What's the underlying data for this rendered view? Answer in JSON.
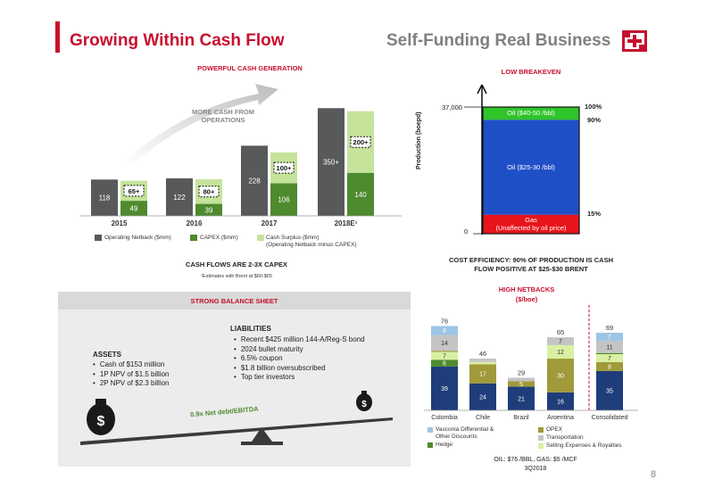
{
  "header": {
    "left_title": "Growing Within Cash Flow",
    "right_title": "Self-Funding Real Business"
  },
  "cash_generation": {
    "section_title": "POWERFUL CASH GENERATION",
    "arrow_annotation_line1": "MORE CASH FROM",
    "arrow_annotation_line2": "OPERATIONS",
    "footer_title": "CASH FLOWS ARE 2-3X CAPEX",
    "footnote": "¹Estimates with Brent at $60-$65",
    "legend": {
      "netback": "Operating Netback ($mm)",
      "capex": "CAPEX ($mm)",
      "surplus_line1": "Cash Surplus ($mm)",
      "surplus_line2": "(Operating Netback minus CAPEX)"
    }
  },
  "chart_data": [
    {
      "type": "bar",
      "title": "POWERFUL CASH GENERATION",
      "categories": [
        "2015",
        "2016",
        "2017",
        "2018E¹"
      ],
      "series": [
        {
          "name": "Operating Netback ($mm)",
          "values": [
            118,
            122,
            228,
            350
          ],
          "labels": [
            "118",
            "122",
            "228",
            "350+"
          ]
        },
        {
          "name": "CAPEX ($mm)",
          "values": [
            49,
            39,
            106,
            140
          ],
          "labels": [
            "49",
            "39",
            "106",
            "140"
          ]
        },
        {
          "name": "Cash Surplus ($mm)",
          "values": [
            65,
            80,
            100,
            200
          ],
          "labels": [
            "65+",
            "80+",
            "100+",
            "200+"
          ]
        }
      ]
    },
    {
      "type": "bar",
      "title": "LOW BREAKEVEN",
      "ylabel": "Production (boepd)",
      "ylim": [
        0,
        37000
      ],
      "y_ticks": [
        "37,000",
        "0"
      ],
      "segments": [
        {
          "label": "Gas",
          "sublabel": "(Unaffected by oil price)",
          "from_pct": 0,
          "to_pct": 15,
          "color": "#e8141b"
        },
        {
          "label": "Oil ($25-30 /bbl)",
          "from_pct": 15,
          "to_pct": 90,
          "color": "#1f4fc6"
        },
        {
          "label": "Oil ($40-50 /bbl)",
          "from_pct": 90,
          "to_pct": 100,
          "color": "#2fc42a"
        }
      ],
      "pct_labels": [
        "100%",
        "90%",
        "15%"
      ]
    },
    {
      "type": "bar",
      "title": "HIGH NETBACKS",
      "ylabel": "($/boe)",
      "categories": [
        "Colombia",
        "Chile",
        "Brazil",
        "Argentina",
        "Consolidated"
      ],
      "totals": [
        76,
        46,
        29,
        65,
        69
      ],
      "series": [
        {
          "name": "Vasconia Differential & Other Discounts",
          "color": "#9dc3e6",
          "values": [
            8,
            0,
            0,
            0,
            7
          ]
        },
        {
          "name": "OPEX",
          "color": "#a09a3a",
          "values": [
            0,
            17,
            3,
            30,
            0
          ]
        },
        {
          "name": "Hedge",
          "color": "#4e8a2e",
          "values": [
            6,
            2,
            0,
            0,
            8
          ]
        },
        {
          "name": "Transportation",
          "color": "#c4c4c4",
          "values": [
            14,
            3,
            3,
            7,
            11
          ]
        },
        {
          "name": "Selling Expenses & Royalties",
          "color": "#d9f0a3",
          "values": [
            7,
            0,
            0,
            12,
            7
          ]
        }
      ]
    }
  ],
  "breakeven": {
    "section_title": "LOW BREAKEVEN",
    "ylabel": "Production (boepd)",
    "tick_top": "37,000",
    "tick_bottom": "0",
    "pct_100": "100%",
    "pct_90": "90%",
    "pct_15": "15%",
    "seg_top": "Oil ($40-50 /bbl)",
    "seg_mid": "Oil ($25-30 /bbl)",
    "seg_bottom_1": "Gas",
    "seg_bottom_2": "(Unaffected by oil price)",
    "cost_eff_1": "COST EFFICIENCY: 90% OF PRODUCTION IS CASH",
    "cost_eff_2": "FLOW POSITIVE AT $25-$30 BRENT"
  },
  "netbacks": {
    "section_title": "HIGH NETBACKS",
    "unit": "($/boe)",
    "footer_line1": "OIL: $76 /BBL, GAS: $5 /MCF",
    "footer_line2": "3Q2018",
    "legend": [
      {
        "label": "Vasconia Differential &",
        "label2": "Other Discounts",
        "color": "#9dc3e6"
      },
      {
        "label": "OPEX",
        "label2": "",
        "color": "#a09a3a"
      },
      {
        "label": "Transportation",
        "label2": "",
        "color": "#c4c4c4"
      },
      {
        "label": "Hedge",
        "label2": "",
        "color": "#4e8a2e"
      },
      {
        "label": "Selling Expenses & Royalties",
        "label2": "",
        "color": "#d9f0a3"
      }
    ]
  },
  "balance_sheet": {
    "section_title": "STRONG BALANCE SHEET",
    "assets_title": "ASSETS",
    "assets": [
      "Cash of $153 million",
      "1P NPV of $1.5 billion",
      "2P NPV of $2.3 billion"
    ],
    "liabilities_title": "LIABILITIES",
    "liabilities": [
      "Recent $425 million 144-A/Reg-S bond",
      "2024 bullet maturity",
      "6.5% coupon",
      "$1.8 billion oversubscribed",
      "Top tier investors"
    ],
    "seesaw_label": "0.9x Net debt/EBITDA"
  },
  "page_number": "8",
  "colors": {
    "brand_red": "#c8102e",
    "netback_gray": "#58595b",
    "capex_green": "#4e8a2e",
    "surplus_lightgreen": "#c5e39b"
  }
}
